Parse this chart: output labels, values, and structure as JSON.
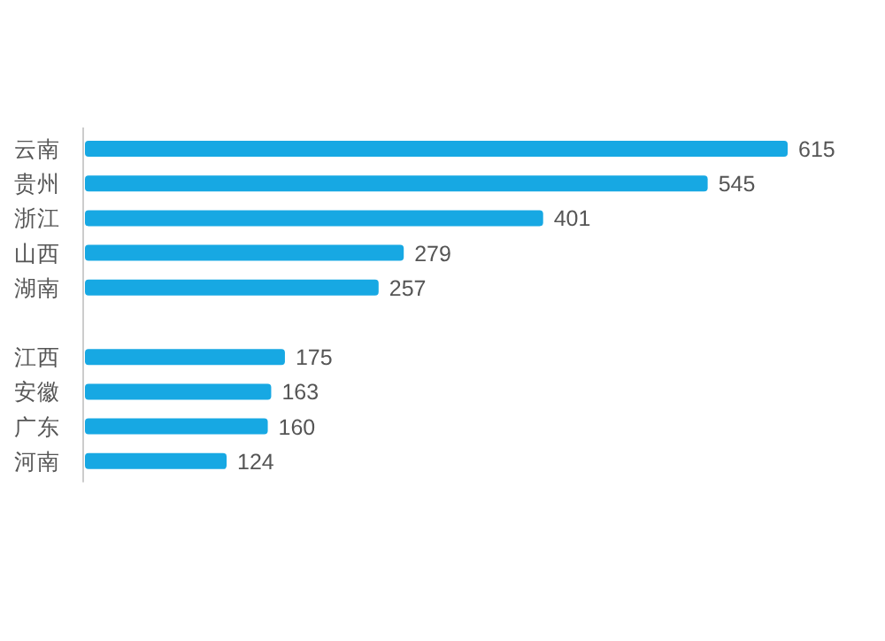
{
  "chart_data": {
    "type": "bar",
    "orientation": "horizontal",
    "categories": [
      "云南",
      "贵州",
      "浙江",
      "山西",
      "湖南",
      null,
      "江西",
      "安徽",
      "广东",
      "河南"
    ],
    "values": [
      615,
      545,
      401,
      279,
      257,
      null,
      175,
      163,
      160,
      124
    ],
    "color": "#17a8e3",
    "data_labels": true
  }
}
